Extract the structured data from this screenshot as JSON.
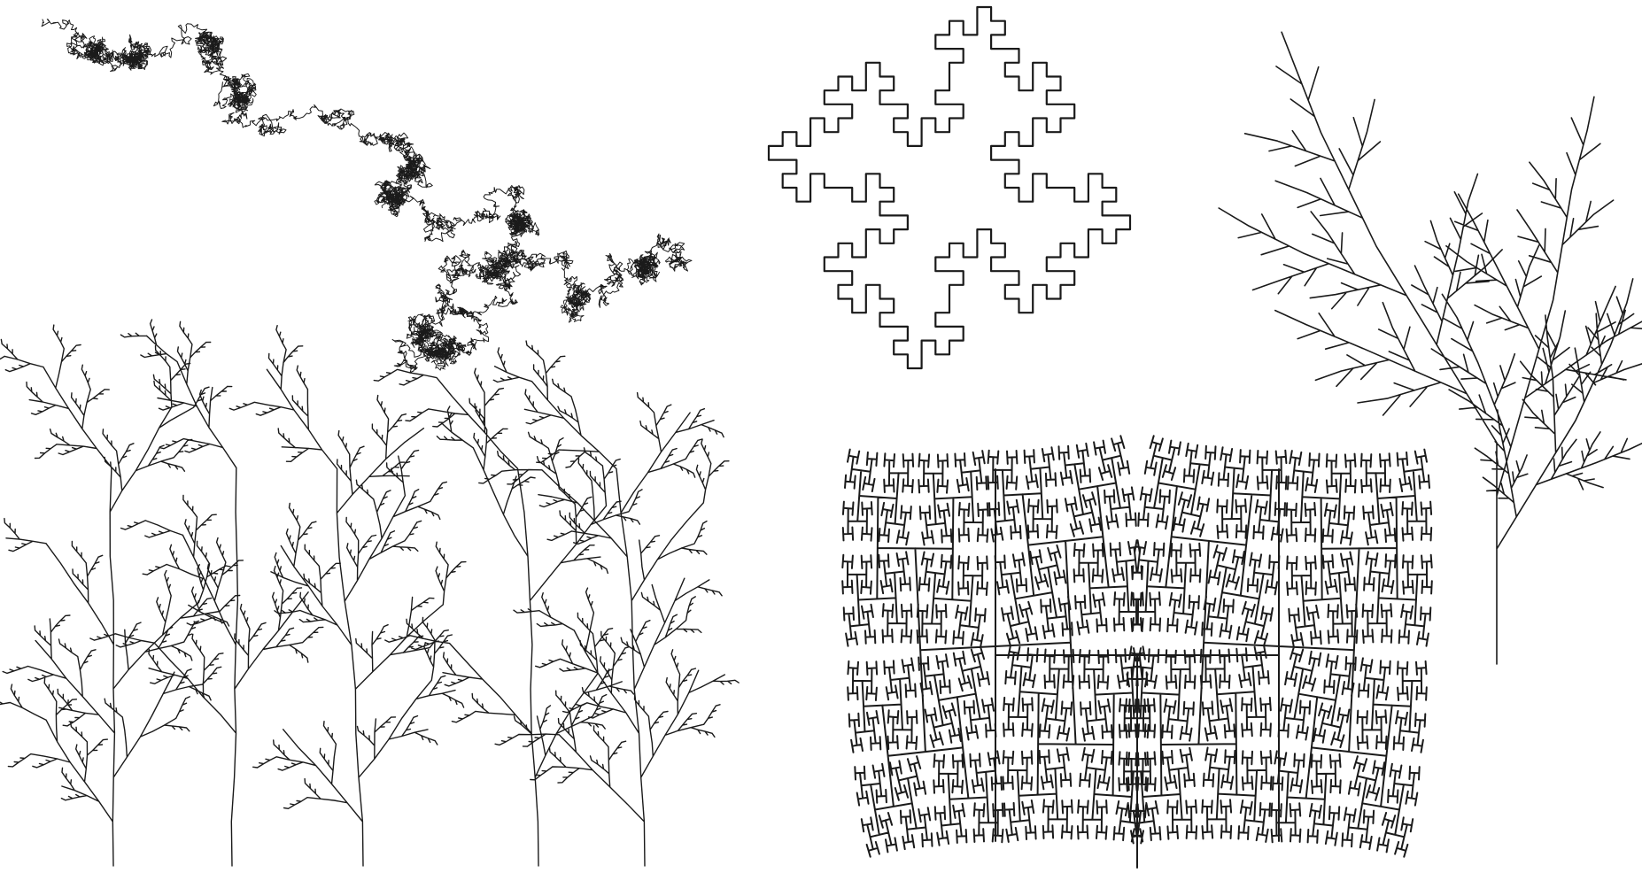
{
  "page": {
    "background": "#ffffff",
    "ink_color": "#1a1a1a",
    "figures": [
      {
        "id": "brownian-motion-walk",
        "kind": "random walk"
      },
      {
        "id": "koch-snowflake-square-variant",
        "kind": "quadratic Koch curve"
      },
      {
        "id": "fern-branch-tree",
        "kind": "L-system tree"
      },
      {
        "id": "stochastic-plants-row",
        "kind": "L-system plants",
        "count": 5
      },
      {
        "id": "h-tree-fractal",
        "kind": "H-tree"
      }
    ]
  }
}
